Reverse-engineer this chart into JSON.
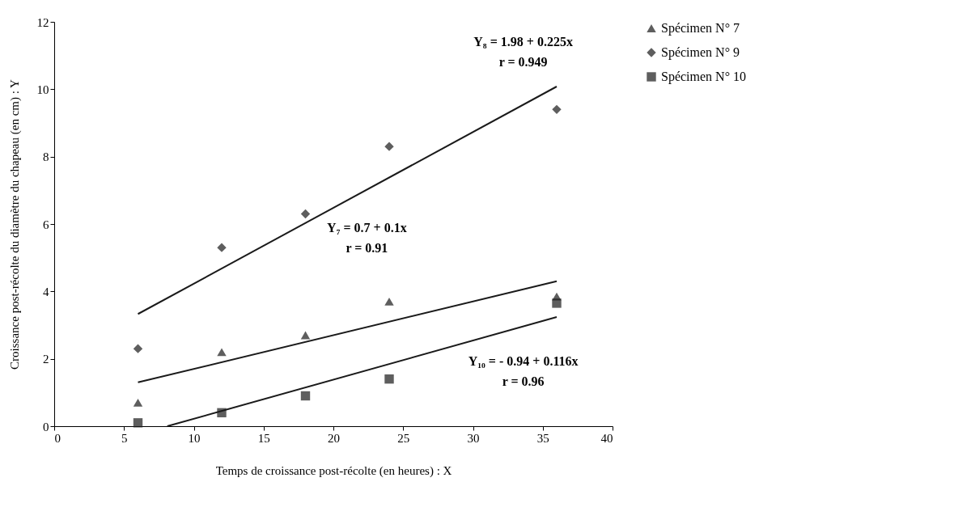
{
  "chart_data": {
    "type": "scatter",
    "xlabel": "Temps de croissance post-récolte (en heures) : X",
    "ylabel": "Croissance post-récolte du diamètre du chapeau  (en cm) : Y",
    "xlim": [
      0,
      40
    ],
    "xticks": [
      0,
      5,
      10,
      15,
      20,
      25,
      30,
      35,
      40
    ],
    "ylim": [
      0,
      12
    ],
    "yticks": [
      0,
      2,
      4,
      6,
      8,
      10,
      12
    ],
    "grid": false,
    "legend": "right",
    "x": [
      6,
      12,
      18,
      24,
      36
    ],
    "series": [
      {
        "name": "Spécimen N° 7",
        "color": "#1a1a1a",
        "marker": "triangle",
        "values": [
          0.7,
          2.2,
          2.7,
          3.7,
          3.85
        ]
      },
      {
        "name": "Spécimen N° 9",
        "color": "#1a1a1a",
        "marker": "diamond",
        "values": [
          2.3,
          5.3,
          6.3,
          8.3,
          9.4
        ]
      },
      {
        "name": "Spécimen N° 10",
        "color": "#1a1a1a",
        "marker": "square",
        "values": [
          0.1,
          0.4,
          0.9,
          1.4,
          3.65
        ]
      },
      {
        "type": "line",
        "color": "#1a1a1a",
        "x": [
          6,
          36
        ],
        "values": [
          3.33,
          10.08
        ]
      },
      {
        "type": "line",
        "color": "#1a1a1a",
        "x": [
          6,
          36
        ],
        "values": [
          1.3,
          4.3
        ]
      },
      {
        "type": "line",
        "color": "#1a1a1a",
        "x": [
          8.1,
          36
        ],
        "values": [
          0,
          3.24
        ]
      }
    ],
    "annotations": [
      "Y₈ = 1.98 + 0.225x",
      "r = 0.949",
      "Y₇ = 0.7 + 0.1x",
      "r = 0.91",
      "Y₁₀ = - 0.94 + 0.116x",
      "r = 0.96"
    ]
  }
}
